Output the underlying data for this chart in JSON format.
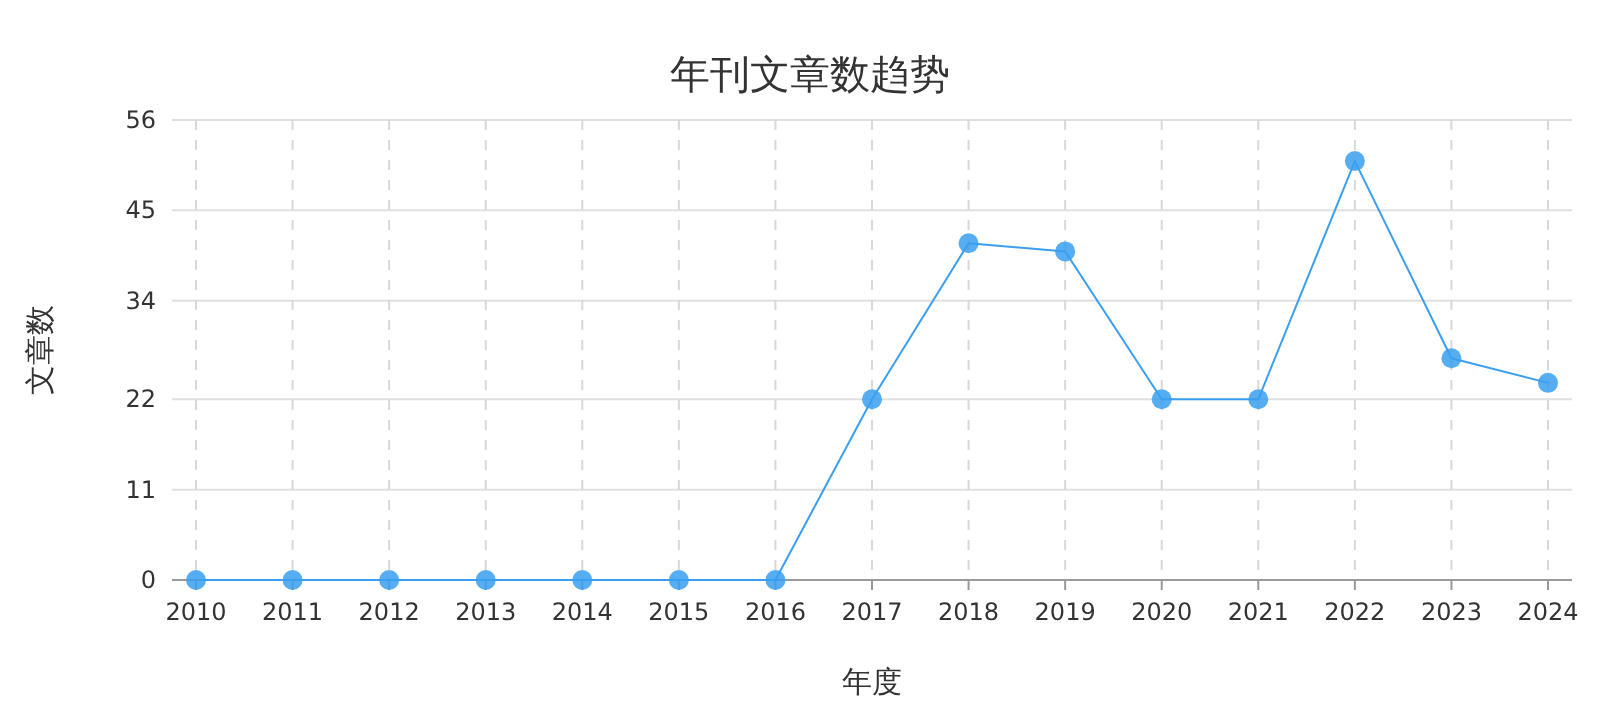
{
  "chart_data": {
    "type": "line",
    "title": "年刊文章数趋势",
    "xlabel": "年度",
    "ylabel": "文章数",
    "categories": [
      "2010",
      "2011",
      "2012",
      "2013",
      "2014",
      "2015",
      "2016",
      "2017",
      "2018",
      "2019",
      "2020",
      "2021",
      "2022",
      "2023",
      "2024"
    ],
    "series": [
      {
        "color": "#3a9ff0",
        "values": [
          0,
          0,
          0,
          0,
          0,
          0,
          0,
          22,
          41,
          40,
          22,
          22,
          51,
          27,
          24
        ]
      }
    ],
    "ylim": [
      0,
      56
    ],
    "yticks": [
      0,
      11,
      22,
      34,
      45,
      56
    ],
    "grid": true,
    "marker": "circle",
    "line_style": "solid"
  }
}
